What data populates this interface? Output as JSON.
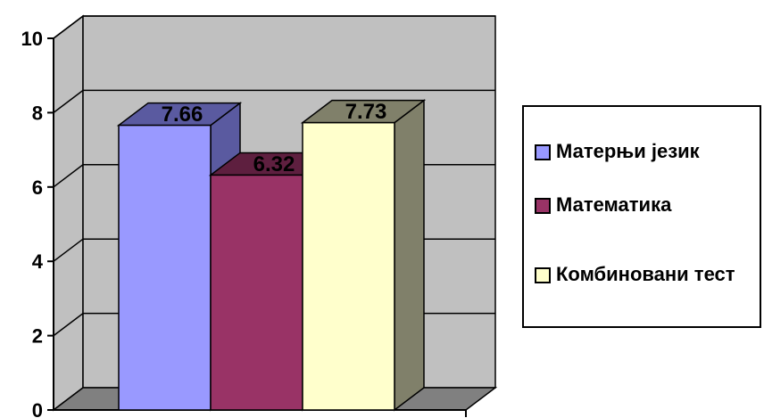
{
  "chart_data": {
    "type": "bar",
    "categories": [
      ""
    ],
    "series": [
      {
        "name": "Матерњи језик",
        "values": [
          7.66
        ],
        "color": "#9999ff",
        "side_color": "#5a5aa0"
      },
      {
        "name": "Математика",
        "values": [
          6.32
        ],
        "color": "#993366",
        "side_color": "#5e1f3f"
      },
      {
        "name": "Комбиновани тест",
        "values": [
          7.73
        ],
        "color": "#ffffcc",
        "side_color": "#80806a"
      }
    ],
    "data_labels": [
      "7.66",
      "6.32",
      "7.73"
    ],
    "ylim": [
      0,
      10
    ],
    "yticks": [
      "0",
      "2",
      "4",
      "6",
      "8",
      "10"
    ],
    "grid": true,
    "legend_position": "right",
    "wall_color": "#c0c0c0",
    "floor_color": "#808080"
  }
}
